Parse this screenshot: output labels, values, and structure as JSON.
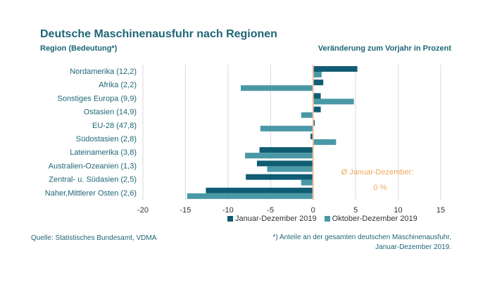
{
  "title": "Deutsche Maschinenausfuhr nach Regionen",
  "subtitle_left": "Region (Bedeutung*)",
  "subtitle_right": "Veränderung zum Vorjahr in Prozent",
  "source": "Quelle: Statistisches Bundesamt, VDMA",
  "footnote_line1": "*) Anteile an der gesamten deutschen Maschinenausfuhr,",
  "footnote_line2": "Januar-Dezember 2019.",
  "annotation_label": "Ø Januar-Dezember:",
  "annotation_value": "0 %",
  "colors": {
    "series1": "#0f5c73",
    "series2": "#4a98a5",
    "zero_line": "#f2c49a",
    "annotation": "#f0a860",
    "text": "#1e6677",
    "grid": "#d9d9d9"
  },
  "chart_data": {
    "type": "bar",
    "orientation": "horizontal",
    "categories": [
      "Nordamerika (12,2)",
      "Afrika (2,2)",
      "Sonstiges Europa (9,9)",
      "Ostasien (14,9)",
      "EU-28 (47,8)",
      "Südostasien (2,8)",
      "Lateinamerika (3,8)",
      "Australien-Ozeanien (1,3)",
      "Zentral- u. Südasien (2,5)",
      "Naher,Mittlerer Osten (2,6)"
    ],
    "series": [
      {
        "name": "Januar-Dezember 2019",
        "values": [
          5.2,
          1.2,
          0.9,
          0.9,
          0.2,
          -0.3,
          -6.3,
          -6.6,
          -7.9,
          -12.6
        ]
      },
      {
        "name": "Oktober-Dezember 2019",
        "values": [
          1.0,
          -8.5,
          4.8,
          -1.4,
          -6.2,
          2.7,
          -8.0,
          -5.4,
          -1.4,
          -14.8
        ]
      }
    ],
    "xlim": [
      -20,
      15
    ],
    "xticks": [
      -20,
      -15,
      -10,
      -5,
      0,
      5,
      10,
      15
    ],
    "grid": true,
    "legend_position": "bottom-right"
  }
}
